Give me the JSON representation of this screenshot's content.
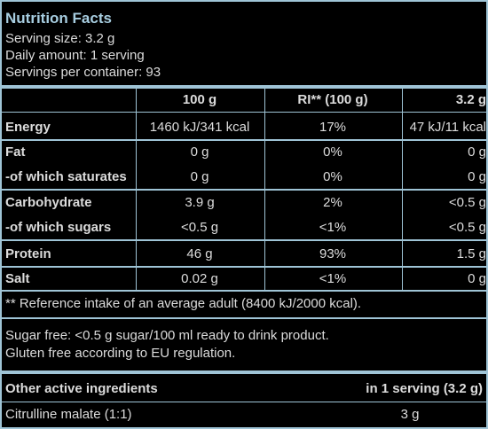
{
  "title": "Nutrition Facts",
  "serving_size": "Serving size: 3.2 g",
  "daily_amount": "Daily amount: 1 serving",
  "servings_per_container": "Servings per container: 93",
  "table": {
    "headers": [
      "100 g",
      "RI** (100 g)",
      "3.2 g"
    ],
    "rows": [
      {
        "label": "Energy",
        "v1": "1460 kJ/341 kcal",
        "v2": "17%",
        "v3": "47 kJ/11 kcal"
      },
      {
        "label": "Fat",
        "v1": "0 g",
        "v2": "0%",
        "v3": "0 g"
      },
      {
        "label": "-of which saturates",
        "v1": "0 g",
        "v2": "0%",
        "v3": "0 g"
      },
      {
        "label": "Carbohydrate",
        "v1": "3.9 g",
        "v2": "2%",
        "v3": "<0.5 g"
      },
      {
        "label": "-of which sugars",
        "v1": "<0.5 g",
        "v2": "<1%",
        "v3": "<0.5 g"
      },
      {
        "label": "Protein",
        "v1": "46 g",
        "v2": "93%",
        "v3": "1.5 g"
      },
      {
        "label": "Salt",
        "v1": "0.02 g",
        "v2": "<1%",
        "v3": "0 g"
      }
    ]
  },
  "ri_note": "** Reference intake of an average adult (8400 kJ/2000 kcal).",
  "notes": [
    "Sugar free: <0.5 g sugar/100 ml ready to drink product.",
    "Gluten free according to EU regulation."
  ],
  "other": {
    "header_label": "Other active ingredients",
    "header_value": "in 1 serving (3.2 g)",
    "rows": [
      {
        "label": "Citrulline malate (1:1)",
        "value": "3 g"
      }
    ]
  }
}
